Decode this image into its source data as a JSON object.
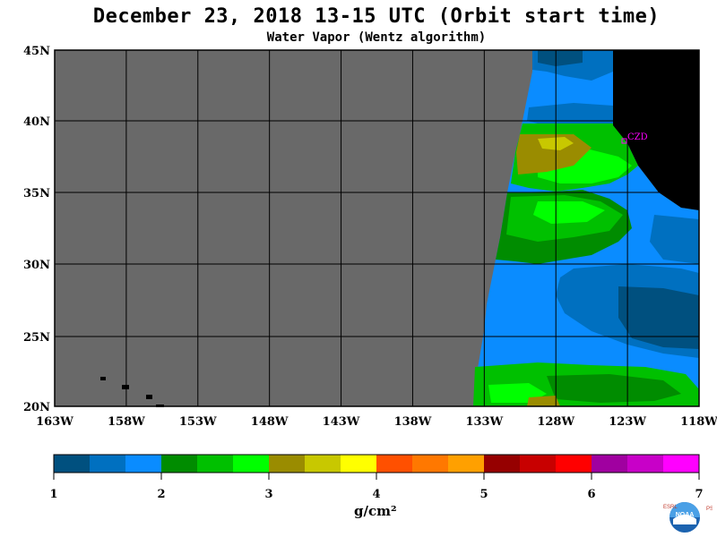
{
  "title": "December 23, 2018  13-15 UTC  (Orbit start time)",
  "subtitle": "Water Vapor (Wentz algorithm)",
  "map": {
    "lat_labels": [
      "45N",
      "40N",
      "35N",
      "30N",
      "25N",
      "20N"
    ],
    "lon_labels": [
      "163W",
      "158W",
      "153W",
      "148W",
      "143W",
      "138W",
      "133W",
      "128W",
      "123W",
      "118W"
    ],
    "station_label": "CZD",
    "colors": {
      "no_data": "#696969",
      "land": "#000000",
      "station": "#ff00ff"
    }
  },
  "colorbar": {
    "tick_labels": [
      "1",
      "2",
      "3",
      "4",
      "5",
      "6",
      "7"
    ],
    "units": "g/cm²",
    "colors": [
      "#00507f",
      "#0070c0",
      "#0a8cff",
      "#008c00",
      "#00c000",
      "#00ff00",
      "#9a8c00",
      "#c8c800",
      "#ffff00",
      "#ff5000",
      "#ff7800",
      "#ffa000",
      "#960000",
      "#c80000",
      "#ff0000",
      "#a000a0",
      "#c800c8",
      "#ff00ff"
    ]
  },
  "logo": {
    "left_letters": "ESRL",
    "right_letters": "PSD",
    "center_text": "NOAA"
  }
}
